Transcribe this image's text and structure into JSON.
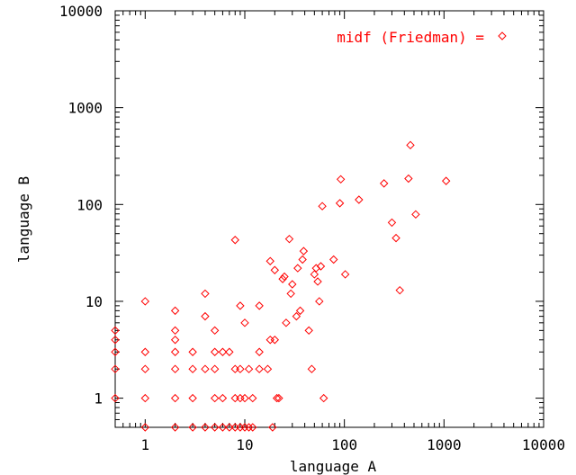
{
  "chart_data": {
    "type": "scatter",
    "xlabel": "language A",
    "ylabel": "language B",
    "x_scale": "log",
    "y_scale": "log",
    "xlim": [
      0.5,
      10000
    ],
    "ylim": [
      0.5,
      10000
    ],
    "x_ticks": [
      1,
      10,
      100,
      1000,
      10000
    ],
    "y_ticks": [
      1,
      10,
      100,
      1000,
      10000
    ],
    "x_tick_labels": [
      "1",
      "10",
      "100",
      "1000",
      "10000"
    ],
    "y_tick_labels": [
      "1",
      "10",
      "100",
      "1000",
      "10000"
    ],
    "grid": false,
    "legend_position": "top-right",
    "colors": {
      "series": "#ff0000",
      "axes": "#000000"
    },
    "series": [
      {
        "name": "midf (Friedman) =",
        "marker": "diamond",
        "points": [
          [
            0.5,
            5
          ],
          [
            0.5,
            4
          ],
          [
            0.5,
            3
          ],
          [
            0.5,
            2
          ],
          [
            0.5,
            1
          ],
          [
            1,
            10
          ],
          [
            1,
            3
          ],
          [
            1,
            2
          ],
          [
            1,
            1
          ],
          [
            1,
            0.5
          ],
          [
            2,
            8
          ],
          [
            2,
            5
          ],
          [
            2,
            4
          ],
          [
            2,
            3
          ],
          [
            2,
            2
          ],
          [
            2,
            1
          ],
          [
            2,
            0.5
          ],
          [
            3,
            3
          ],
          [
            3,
            2
          ],
          [
            3,
            1
          ],
          [
            3,
            0.5
          ],
          [
            4,
            12
          ],
          [
            4,
            7
          ],
          [
            4,
            2
          ],
          [
            4,
            0.5
          ],
          [
            5,
            5
          ],
          [
            5,
            3
          ],
          [
            5,
            2
          ],
          [
            5,
            1
          ],
          [
            5,
            0.5
          ],
          [
            6,
            3
          ],
          [
            6,
            1
          ],
          [
            6,
            0.5
          ],
          [
            7,
            3
          ],
          [
            7,
            0.5
          ],
          [
            8,
            43
          ],
          [
            8,
            2
          ],
          [
            8,
            1
          ],
          [
            8,
            0.5
          ],
          [
            9,
            9
          ],
          [
            9,
            2
          ],
          [
            9,
            1
          ],
          [
            9,
            0.5
          ],
          [
            10,
            6
          ],
          [
            10,
            1
          ],
          [
            10,
            0.5
          ],
          [
            11,
            2
          ],
          [
            11,
            0.5
          ],
          [
            12,
            1
          ],
          [
            12,
            0.5
          ],
          [
            14,
            9
          ],
          [
            14,
            3
          ],
          [
            14,
            2
          ],
          [
            17,
            2
          ],
          [
            18,
            26
          ],
          [
            18,
            4
          ],
          [
            19,
            0.5
          ],
          [
            20,
            21
          ],
          [
            20,
            4
          ],
          [
            21,
            1
          ],
          [
            22,
            1
          ],
          [
            24,
            17
          ],
          [
            25,
            18
          ],
          [
            26,
            6
          ],
          [
            28,
            44
          ],
          [
            29,
            12
          ],
          [
            30,
            15
          ],
          [
            33,
            7
          ],
          [
            34,
            22
          ],
          [
            36,
            8
          ],
          [
            38,
            27
          ],
          [
            39,
            33
          ],
          [
            44,
            5
          ],
          [
            47,
            2
          ],
          [
            50,
            19
          ],
          [
            52,
            22
          ],
          [
            54,
            16
          ],
          [
            56,
            10
          ],
          [
            58,
            23
          ],
          [
            60,
            96
          ],
          [
            62,
            1
          ],
          [
            78,
            27
          ],
          [
            90,
            103
          ],
          [
            92,
            182
          ],
          [
            102,
            19
          ],
          [
            140,
            112
          ],
          [
            250,
            165
          ],
          [
            300,
            65
          ],
          [
            330,
            45
          ],
          [
            360,
            13
          ],
          [
            440,
            185
          ],
          [
            460,
            410
          ],
          [
            520,
            79
          ],
          [
            1050,
            175
          ]
        ]
      }
    ]
  }
}
